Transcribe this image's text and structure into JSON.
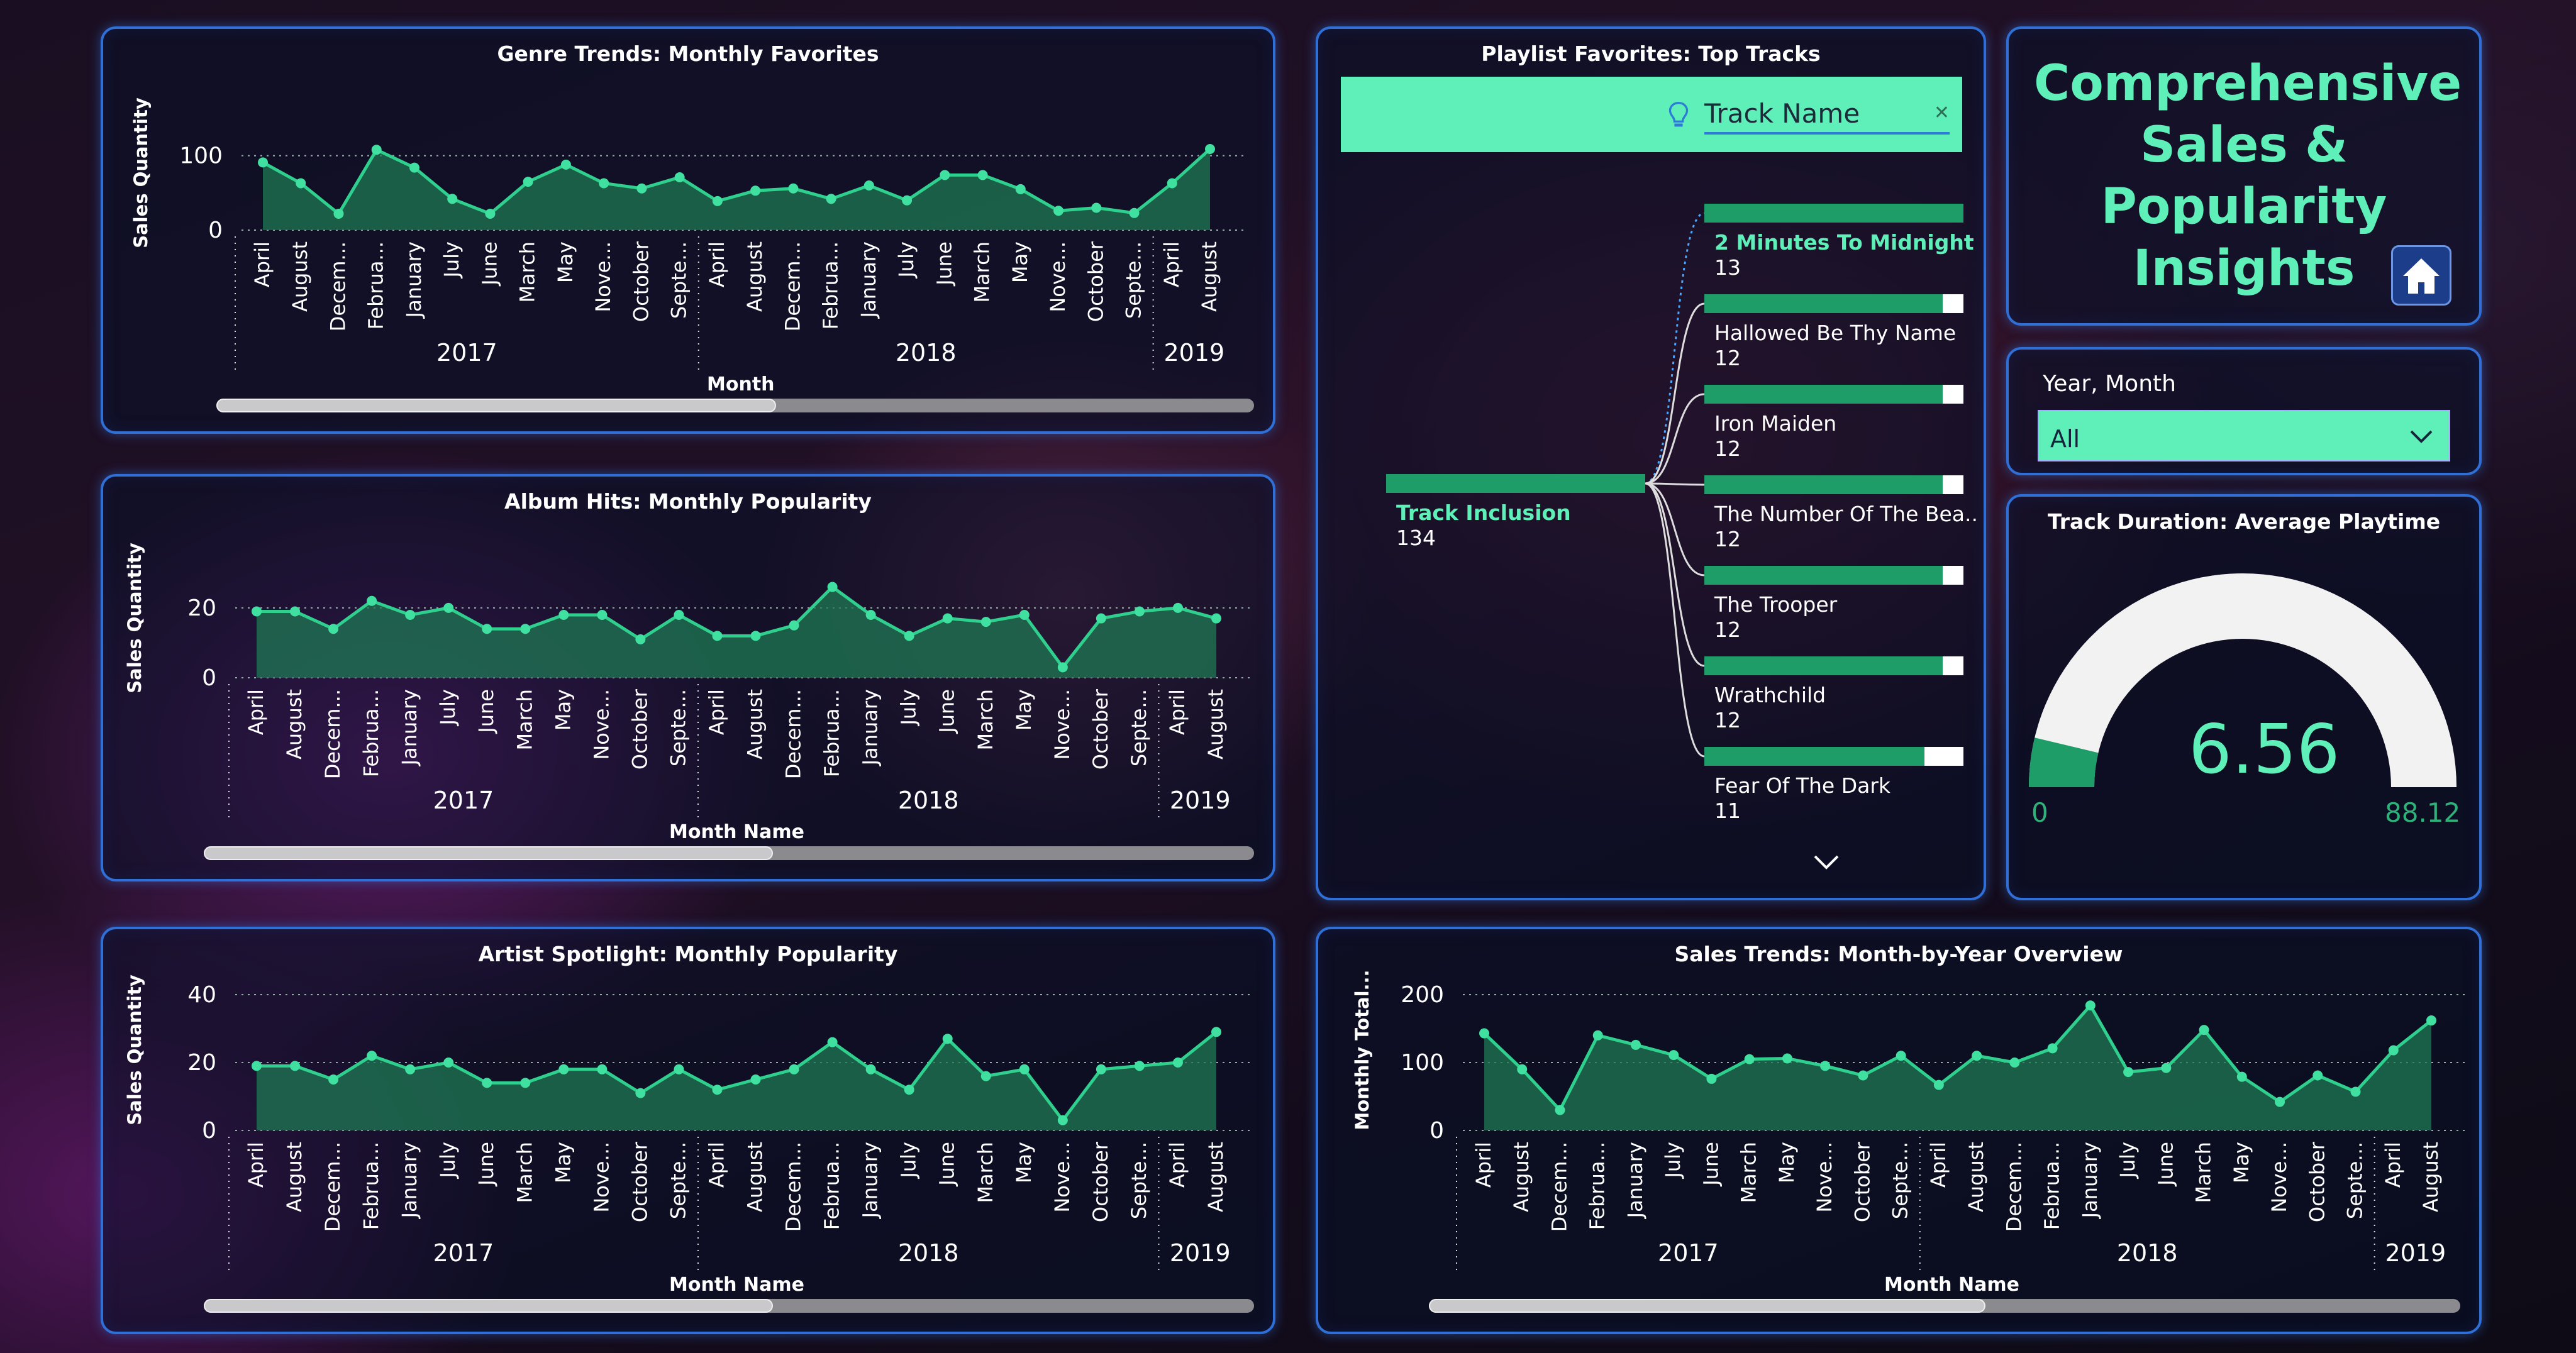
{
  "header": {
    "title": "Comprehensive\nSales &\nPopularity\nInsights",
    "home_icon": "home-icon"
  },
  "slicer": {
    "label": "Year, Month",
    "value": "All"
  },
  "playlist_tree": {
    "title": "Playlist Favorites: Top Tracks",
    "search_label": "Track Name",
    "root": {
      "label": "Track Inclusion",
      "value": "134"
    },
    "children": [
      {
        "label": "2 Minutes To Midnight",
        "value": "13",
        "fill": 1.0
      },
      {
        "label": "Hallowed Be Thy Name",
        "value": "12",
        "fill": 0.92
      },
      {
        "label": "Iron Maiden",
        "value": "12",
        "fill": 0.92
      },
      {
        "label": "The Number Of The Bea..",
        "value": "12",
        "fill": 0.92
      },
      {
        "label": "The Trooper",
        "value": "12",
        "fill": 0.92
      },
      {
        "label": "Wrathchild",
        "value": "12",
        "fill": 0.92
      },
      {
        "label": "Fear Of The Dark",
        "value": "11",
        "fill": 0.85
      }
    ]
  },
  "gauge": {
    "title": "Track Duration: Average Playtime",
    "value": "6.56",
    "min": "0",
    "max": "88.12",
    "fill_fraction": 0.0744
  },
  "colors": {
    "accent": "#5ef0b8",
    "series": "#2fb27a",
    "border": "#2f6fd6"
  },
  "chart_data": [
    {
      "id": "genre",
      "type": "area",
      "title": "Genre Trends: Monthly Favorites",
      "xlabel": "Month",
      "ylabel": "Sales Quantity",
      "ylim": [
        0,
        120
      ],
      "yticks": [
        0,
        100
      ],
      "grid": true,
      "x": [
        "April",
        "August",
        "Decem...",
        "Februa...",
        "January",
        "July",
        "June",
        "March",
        "May",
        "Nove...",
        "October",
        "Septe...",
        "April",
        "August",
        "Decem...",
        "Februa...",
        "January",
        "July",
        "June",
        "March",
        "May",
        "Nove...",
        "October",
        "Septe...",
        "April",
        "August"
      ],
      "values": [
        91,
        63,
        22,
        108,
        84,
        42,
        22,
        65,
        88,
        63,
        56,
        71,
        39,
        53,
        56,
        42,
        60,
        40,
        74,
        74,
        55,
        26,
        30,
        23,
        63,
        109
      ],
      "years": [
        {
          "label": "2017",
          "start": 0,
          "end": 12
        },
        {
          "label": "2018",
          "start": 12,
          "end": 24
        },
        {
          "label": "2019",
          "start": 24,
          "end": 26
        }
      ],
      "scroll_fraction": 0.54
    },
    {
      "id": "album",
      "type": "area",
      "title": "Album Hits: Monthly Popularity",
      "xlabel": "Month Name",
      "ylabel": "Sales Quantity",
      "ylim": [
        0,
        27
      ],
      "yticks": [
        0,
        20
      ],
      "grid": true,
      "x": [
        "April",
        "August",
        "Decem...",
        "Februa...",
        "January",
        "July",
        "June",
        "March",
        "May",
        "Nove...",
        "October",
        "Septe...",
        "April",
        "August",
        "Decem...",
        "Februa...",
        "January",
        "July",
        "June",
        "March",
        "May",
        "Nove...",
        "October",
        "Septe...",
        "April",
        "August"
      ],
      "values": [
        19,
        19,
        14,
        22,
        18,
        20,
        14,
        14,
        18,
        18,
        11,
        18,
        12,
        12,
        15,
        26,
        18,
        12,
        17,
        16,
        18,
        3,
        17,
        19,
        20,
        17
      ],
      "years": [
        {
          "label": "2017",
          "start": 0,
          "end": 12
        },
        {
          "label": "2018",
          "start": 12,
          "end": 24
        },
        {
          "label": "2019",
          "start": 24,
          "end": 26
        }
      ],
      "scroll_fraction": 0.54
    },
    {
      "id": "artist",
      "type": "area",
      "title": "Artist Spotlight: Monthly Popularity",
      "xlabel": "Month Name",
      "ylabel": "Sales Quantity",
      "ylim": [
        0,
        40
      ],
      "yticks": [
        0,
        20,
        40
      ],
      "grid": true,
      "x": [
        "April",
        "August",
        "Decem...",
        "Februa...",
        "January",
        "July",
        "June",
        "March",
        "May",
        "Nove...",
        "October",
        "Septe...",
        "April",
        "August",
        "Decem...",
        "Februa...",
        "January",
        "July",
        "June",
        "March",
        "May",
        "Nove...",
        "October",
        "Septe...",
        "April",
        "August"
      ],
      "values": [
        19,
        19,
        15,
        22,
        18,
        20,
        14,
        14,
        18,
        18,
        11,
        18,
        12,
        15,
        18,
        26,
        18,
        12,
        27,
        16,
        18,
        3,
        18,
        19,
        20,
        29
      ],
      "years": [
        {
          "label": "2017",
          "start": 0,
          "end": 12
        },
        {
          "label": "2018",
          "start": 12,
          "end": 24
        },
        {
          "label": "2019",
          "start": 24,
          "end": 26
        }
      ],
      "scroll_fraction": 0.54
    },
    {
      "id": "sales",
      "type": "area",
      "title": "Sales Trends: Month-by-Year Overview",
      "xlabel": "Month Name",
      "ylabel": "Monthly Total...",
      "ylim": [
        0,
        200
      ],
      "yticks": [
        0,
        100,
        200
      ],
      "grid": true,
      "x": [
        "April",
        "August",
        "Decem...",
        "Februa...",
        "January",
        "July",
        "June",
        "March",
        "May",
        "Nove...",
        "October",
        "Septe...",
        "April",
        "August",
        "Decem...",
        "Februa...",
        "January",
        "July",
        "June",
        "March",
        "May",
        "Nove...",
        "October",
        "Septe...",
        "April",
        "August"
      ],
      "values": [
        143,
        90,
        30,
        140,
        126,
        111,
        76,
        105,
        106,
        95,
        81,
        110,
        67,
        110,
        100,
        121,
        184,
        86,
        92,
        148,
        79,
        42,
        81,
        57,
        118,
        162
      ],
      "years": [
        {
          "label": "2017",
          "start": 0,
          "end": 12
        },
        {
          "label": "2018",
          "start": 12,
          "end": 24
        },
        {
          "label": "2019",
          "start": 24,
          "end": 26
        }
      ],
      "scroll_fraction": 0.54
    }
  ]
}
